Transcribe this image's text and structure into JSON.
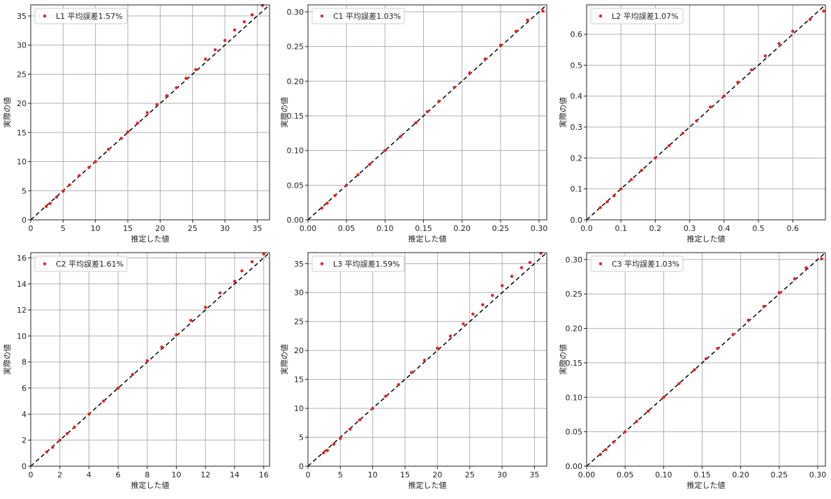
{
  "chart_data": [
    {
      "type": "scatter",
      "legend": "L1 平均誤差1.57%",
      "xlabel": "推定した値",
      "ylabel": "実際の値",
      "xlim": [
        0,
        36.9
      ],
      "ylim": [
        0,
        36.9
      ],
      "ticks": [
        "0",
        "5",
        "10",
        "15",
        "20",
        "25",
        "30",
        "35"
      ],
      "grid": true,
      "legend_placement": "top-left",
      "reference_line": "y=x",
      "points": [
        [
          2.4,
          2.3
        ],
        [
          3,
          2.8
        ],
        [
          4,
          3.9
        ],
        [
          5,
          4.9
        ],
        [
          6,
          6
        ],
        [
          7.5,
          7.6
        ],
        [
          9,
          9
        ],
        [
          10,
          10
        ],
        [
          12,
          12.1
        ],
        [
          14,
          14
        ],
        [
          15,
          15.1
        ],
        [
          16.5,
          16.6
        ],
        [
          18,
          18.4
        ],
        [
          19.5,
          19.8
        ],
        [
          21,
          21.3
        ],
        [
          22.5,
          22.7
        ],
        [
          24,
          24.3
        ],
        [
          25.5,
          25.8
        ],
        [
          27,
          27.6
        ],
        [
          28.5,
          29.2
        ],
        [
          30,
          30.8
        ],
        [
          31.5,
          32.6
        ],
        [
          33,
          34
        ],
        [
          34.2,
          35.2
        ],
        [
          35.8,
          36.8
        ]
      ]
    },
    {
      "type": "scatter",
      "legend": "C1 平均誤差1.03%",
      "xlabel": "推定した値",
      "ylabel": "実際の値",
      "xlim": [
        0,
        0.31
      ],
      "ylim": [
        0,
        0.31
      ],
      "ticks": [
        "0.00",
        "0.05",
        "0.10",
        "0.15",
        "0.20",
        "0.25",
        "0.30"
      ],
      "grid": true,
      "legend_placement": "top-left",
      "reference_line": "y=x",
      "points": [
        [
          0.018,
          0.017
        ],
        [
          0.025,
          0.024
        ],
        [
          0.035,
          0.035
        ],
        [
          0.05,
          0.05
        ],
        [
          0.065,
          0.065
        ],
        [
          0.08,
          0.08
        ],
        [
          0.1,
          0.1
        ],
        [
          0.12,
          0.12
        ],
        [
          0.14,
          0.14
        ],
        [
          0.155,
          0.156
        ],
        [
          0.17,
          0.171
        ],
        [
          0.19,
          0.191
        ],
        [
          0.21,
          0.212
        ],
        [
          0.23,
          0.232
        ],
        [
          0.25,
          0.252
        ],
        [
          0.27,
          0.272
        ],
        [
          0.285,
          0.288
        ],
        [
          0.305,
          0.301
        ]
      ]
    },
    {
      "type": "scatter",
      "legend": "L2 平均誤差1.07%",
      "xlabel": "推定した値",
      "ylabel": "実際の値",
      "xlim": [
        0,
        0.695
      ],
      "ylim": [
        0,
        0.695
      ],
      "ticks": [
        "0.0",
        "0.1",
        "0.2",
        "0.3",
        "0.4",
        "0.5",
        "0.6"
      ],
      "grid": true,
      "legend_placement": "top-left",
      "reference_line": "y=x",
      "points": [
        [
          0.04,
          0.04
        ],
        [
          0.06,
          0.058
        ],
        [
          0.08,
          0.078
        ],
        [
          0.1,
          0.1
        ],
        [
          0.13,
          0.13
        ],
        [
          0.16,
          0.16
        ],
        [
          0.2,
          0.2
        ],
        [
          0.24,
          0.24
        ],
        [
          0.28,
          0.28
        ],
        [
          0.32,
          0.32
        ],
        [
          0.36,
          0.365
        ],
        [
          0.4,
          0.4
        ],
        [
          0.44,
          0.445
        ],
        [
          0.48,
          0.485
        ],
        [
          0.52,
          0.53
        ],
        [
          0.56,
          0.57
        ],
        [
          0.6,
          0.61
        ],
        [
          0.65,
          0.648
        ],
        [
          0.69,
          0.675
        ]
      ]
    },
    {
      "type": "scatter",
      "legend": "C2 平均誤差1.61%",
      "xlabel": "推定した値",
      "ylabel": "実際の値",
      "xlim": [
        0,
        16.4
      ],
      "ylim": [
        0,
        16.4
      ],
      "ticks": [
        "0",
        "2",
        "4",
        "6",
        "8",
        "10",
        "12",
        "14",
        "16"
      ],
      "grid": true,
      "legend_placement": "top-left",
      "reference_line": "y=x",
      "points": [
        [
          1.1,
          1.1
        ],
        [
          1.5,
          1.45
        ],
        [
          2,
          2
        ],
        [
          2.5,
          2.5
        ],
        [
          3,
          3
        ],
        [
          4,
          4
        ],
        [
          5,
          5
        ],
        [
          6,
          6
        ],
        [
          7,
          7.05
        ],
        [
          8,
          8.1
        ],
        [
          9,
          9.15
        ],
        [
          10,
          10.1
        ],
        [
          11,
          11.2
        ],
        [
          12,
          12.2
        ],
        [
          13,
          13.3
        ],
        [
          14,
          14.2
        ],
        [
          14.5,
          15
        ],
        [
          15.2,
          15.7
        ],
        [
          16,
          16.3
        ]
      ]
    },
    {
      "type": "scatter",
      "legend": "L3 平均誤差1.59%",
      "xlabel": "推定した値",
      "ylabel": "実際の値",
      "xlim": [
        0,
        36.9
      ],
      "ylim": [
        0,
        36.9
      ],
      "ticks": [
        "0",
        "5",
        "10",
        "15",
        "20",
        "25",
        "30",
        "35"
      ],
      "grid": true,
      "legend_placement": "top-left",
      "reference_line": "y=x",
      "points": [
        [
          2.4,
          2.3
        ],
        [
          3,
          2.7
        ],
        [
          4,
          3.8
        ],
        [
          5,
          4.8
        ],
        [
          6.5,
          6.4
        ],
        [
          8,
          8
        ],
        [
          10,
          10
        ],
        [
          12,
          12.1
        ],
        [
          14,
          14.1
        ],
        [
          16,
          16.2
        ],
        [
          18,
          18.3
        ],
        [
          20,
          20.4
        ],
        [
          22,
          22.5
        ],
        [
          24,
          24.6
        ],
        [
          25.5,
          26.3
        ],
        [
          27,
          27.9
        ],
        [
          28.5,
          29.5
        ],
        [
          30,
          31.2
        ],
        [
          31.5,
          32.8
        ],
        [
          33,
          34.3
        ],
        [
          34.3,
          35.2
        ],
        [
          36,
          36.8
        ]
      ]
    },
    {
      "type": "scatter",
      "legend": "C3 平均誤差1.03%",
      "xlabel": "推定した値",
      "ylabel": "実際の値",
      "xlim": [
        0,
        0.31
      ],
      "ylim": [
        0,
        0.31
      ],
      "ticks": [
        "0.00",
        "0.05",
        "0.10",
        "0.15",
        "0.20",
        "0.25",
        "0.30"
      ],
      "grid": true,
      "legend_placement": "top-left",
      "reference_line": "y=x",
      "points": [
        [
          0.018,
          0.017
        ],
        [
          0.025,
          0.024
        ],
        [
          0.035,
          0.035
        ],
        [
          0.05,
          0.05
        ],
        [
          0.065,
          0.065
        ],
        [
          0.08,
          0.08
        ],
        [
          0.1,
          0.1
        ],
        [
          0.12,
          0.12
        ],
        [
          0.14,
          0.14
        ],
        [
          0.155,
          0.156
        ],
        [
          0.17,
          0.171
        ],
        [
          0.19,
          0.191
        ],
        [
          0.21,
          0.212
        ],
        [
          0.23,
          0.232
        ],
        [
          0.25,
          0.252
        ],
        [
          0.27,
          0.272
        ],
        [
          0.285,
          0.288
        ],
        [
          0.305,
          0.301
        ]
      ]
    }
  ],
  "colors": {
    "points": "#e8201a",
    "reference": "#000000",
    "grid": "#b0b0b0"
  }
}
